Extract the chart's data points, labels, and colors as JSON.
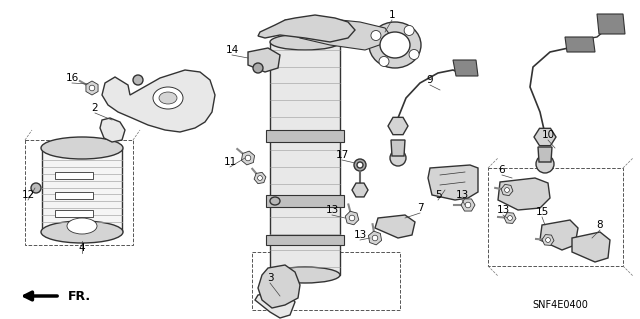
{
  "bg_color": "#ffffff",
  "diagram_code": "SNF4E0400",
  "figsize": [
    6.4,
    3.19
  ],
  "dpi": 100
}
